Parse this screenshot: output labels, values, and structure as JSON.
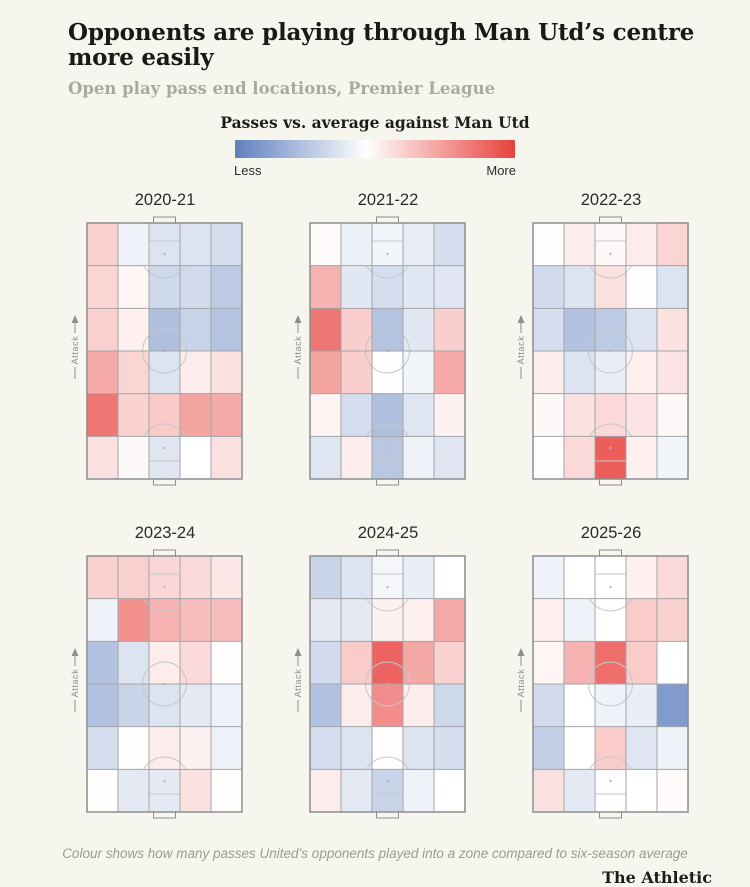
{
  "header": {
    "title": "Opponents are playing through Man Utd’s centre more easily",
    "subtitle": "Open play pass end locations, Premier League"
  },
  "legend": {
    "title": "Passes vs. average against Man Utd",
    "less_label": "Less",
    "more_label": "More",
    "gradient": {
      "less_color": "#5f80be",
      "mid_color": "#ffffff",
      "more_color": "#e8413c",
      "mid_position_pct": 47
    }
  },
  "pitch": {
    "attack_label": "Attack"
  },
  "footer": {
    "note": "Colour shows how many passes United’s opponents played into a zone compared to six-season average",
    "brand": "The Athletic"
  },
  "chart_data": {
    "type": "heatmap",
    "grid": {
      "rows": 6,
      "cols": 5,
      "orientation": "vertical-pitch",
      "attack_direction": "up",
      "row_order": "top row is the end opponents attack towards"
    },
    "scale": {
      "min": -1,
      "max": 1,
      "min_meaning": "fewer passes than six-season average",
      "max_meaning": "more passes than six-season average",
      "min_color": "#5f80be",
      "zero_color": "#ffffff",
      "max_color": "#e8413c"
    },
    "seasons": [
      {
        "label": "2020-21",
        "values": [
          [
            0.25,
            -0.1,
            -0.22,
            -0.22,
            -0.26
          ],
          [
            0.22,
            0.05,
            -0.3,
            -0.28,
            -0.42
          ],
          [
            0.25,
            0.08,
            -0.5,
            -0.35,
            -0.47
          ],
          [
            0.45,
            0.22,
            -0.22,
            0.1,
            0.16
          ],
          [
            0.72,
            0.24,
            0.28,
            0.48,
            0.44
          ],
          [
            0.16,
            0.03,
            -0.2,
            0.0,
            0.16
          ]
        ]
      },
      {
        "label": "2021-22",
        "values": [
          [
            0.02,
            -0.12,
            -0.08,
            -0.14,
            -0.26
          ],
          [
            0.4,
            -0.18,
            -0.26,
            -0.18,
            -0.2
          ],
          [
            0.72,
            0.26,
            -0.47,
            -0.18,
            0.26
          ],
          [
            0.48,
            0.26,
            0.01,
            -0.08,
            0.45
          ],
          [
            0.06,
            -0.26,
            -0.5,
            -0.2,
            0.07
          ],
          [
            -0.2,
            0.1,
            -0.44,
            -0.1,
            -0.2
          ]
        ]
      },
      {
        "label": "2022-23",
        "values": [
          [
            0.01,
            0.1,
            0.03,
            0.1,
            0.22
          ],
          [
            -0.28,
            -0.22,
            0.16,
            0.01,
            -0.22
          ],
          [
            -0.26,
            -0.48,
            -0.42,
            -0.22,
            0.16
          ],
          [
            0.1,
            -0.22,
            -0.14,
            0.08,
            0.14
          ],
          [
            0.03,
            0.16,
            0.2,
            0.14,
            0.03
          ],
          [
            0.01,
            0.2,
            0.85,
            0.08,
            -0.08
          ]
        ]
      },
      {
        "label": "2023-24",
        "values": [
          [
            0.25,
            0.25,
            0.21,
            0.2,
            0.13
          ],
          [
            -0.1,
            0.58,
            0.4,
            0.34,
            0.34
          ],
          [
            -0.48,
            -0.22,
            0.1,
            0.2,
            0.01
          ],
          [
            -0.48,
            -0.34,
            -0.22,
            -0.17,
            -0.1
          ],
          [
            -0.26,
            0.01,
            0.1,
            0.07,
            -0.1
          ],
          [
            0.01,
            -0.17,
            -0.17,
            0.16,
            0.01
          ]
        ]
      },
      {
        "label": "2024-25",
        "values": [
          [
            -0.34,
            -0.22,
            -0.07,
            -0.13,
            0.0
          ],
          [
            -0.17,
            -0.17,
            0.07,
            0.08,
            0.45
          ],
          [
            -0.28,
            0.27,
            0.82,
            0.46,
            0.24
          ],
          [
            -0.48,
            0.1,
            0.6,
            0.09,
            -0.31
          ],
          [
            -0.26,
            -0.22,
            0.01,
            -0.22,
            -0.26
          ],
          [
            0.1,
            -0.17,
            -0.34,
            -0.1,
            0.0
          ]
        ]
      },
      {
        "label": "2025-26",
        "values": [
          [
            -0.1,
            0.0,
            0.0,
            0.08,
            0.2
          ],
          [
            0.08,
            -0.1,
            0.0,
            0.27,
            0.24
          ],
          [
            0.05,
            0.4,
            0.76,
            0.27,
            0.0
          ],
          [
            -0.28,
            0.0,
            -0.1,
            -0.13,
            -0.79
          ],
          [
            -0.38,
            0.0,
            0.27,
            -0.2,
            -0.1
          ],
          [
            0.16,
            -0.17,
            0.01,
            0.0,
            0.02
          ]
        ]
      }
    ]
  }
}
